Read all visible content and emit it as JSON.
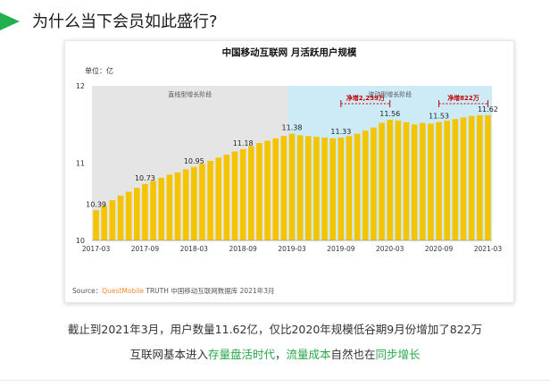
{
  "heading": {
    "text": "为什么当下会员如此盛行?"
  },
  "colors": {
    "accent": "#22b14c",
    "bar": "#f5c400",
    "phase1_bg": "#e5e5e5",
    "phase2_bg": "#cdeaf7",
    "annotation": "#c00000",
    "brand": "#f28c28"
  },
  "chart_data": {
    "type": "bar",
    "title": "中国移动互联网 月活跃用户规模",
    "unit_label": "单位：亿",
    "ylim": [
      10,
      12
    ],
    "yticks": [
      10,
      11,
      12
    ],
    "x_tick_labels": [
      "2017-03",
      "2017-09",
      "2018-03",
      "2018-09",
      "2019-03",
      "2019-09",
      "2020-03",
      "2020-09",
      "2021-03"
    ],
    "phases": [
      "直线型增长阶段",
      "波动型增长阶段"
    ],
    "annotations": [
      "净增2,259万",
      "净增822万"
    ],
    "data_labels": [
      {
        "month": "2017-03",
        "value": 10.39
      },
      {
        "month": "2017-09",
        "value": 10.73
      },
      {
        "month": "2018-03",
        "value": 10.95
      },
      {
        "month": "2018-09",
        "value": 11.18
      },
      {
        "month": "2019-03",
        "value": 11.38
      },
      {
        "month": "2019-09",
        "value": 11.33
      },
      {
        "month": "2020-03",
        "value": 11.56
      },
      {
        "month": "2020-09",
        "value": 11.53
      },
      {
        "month": "2021-03",
        "value": 11.62
      }
    ],
    "categories": [
      "2017-03",
      "2017-04",
      "2017-05",
      "2017-06",
      "2017-07",
      "2017-08",
      "2017-09",
      "2017-10",
      "2017-11",
      "2017-12",
      "2018-01",
      "2018-02",
      "2018-03",
      "2018-04",
      "2018-05",
      "2018-06",
      "2018-07",
      "2018-08",
      "2018-09",
      "2018-10",
      "2018-11",
      "2018-12",
      "2019-01",
      "2019-02",
      "2019-03",
      "2019-04",
      "2019-05",
      "2019-06",
      "2019-07",
      "2019-08",
      "2019-09",
      "2019-10",
      "2019-11",
      "2019-12",
      "2020-01",
      "2020-02",
      "2020-03",
      "2020-04",
      "2020-05",
      "2020-06",
      "2020-07",
      "2020-08",
      "2020-09",
      "2020-10",
      "2020-11",
      "2020-12",
      "2021-01",
      "2021-02",
      "2021-03"
    ],
    "values": [
      10.39,
      10.45,
      10.52,
      10.58,
      10.63,
      10.68,
      10.73,
      10.77,
      10.81,
      10.85,
      10.88,
      10.92,
      10.95,
      10.99,
      11.03,
      11.07,
      11.11,
      11.15,
      11.18,
      11.22,
      11.26,
      11.29,
      11.32,
      11.35,
      11.38,
      11.36,
      11.35,
      11.34,
      11.33,
      11.32,
      11.33,
      11.35,
      11.38,
      11.42,
      11.46,
      11.52,
      11.56,
      11.55,
      11.53,
      11.5,
      11.52,
      11.51,
      11.53,
      11.55,
      11.57,
      11.59,
      11.61,
      11.62,
      11.62
    ],
    "source": {
      "prefix": "Source：",
      "brand": "QuestMobile",
      "rest": " TRUTH 中国移动互联网数据库 2021年3月"
    }
  },
  "caption": {
    "line1": "截止到2021年3月，用户数量11.62亿，仅比2020年规模低谷期9月份增加了822万",
    "line2_a": "互联网基本进入",
    "line2_b": "存量盘活时代",
    "line2_c": "，",
    "line2_d": "流量成本",
    "line2_e": "自然也在",
    "line2_f": "同步增长"
  }
}
